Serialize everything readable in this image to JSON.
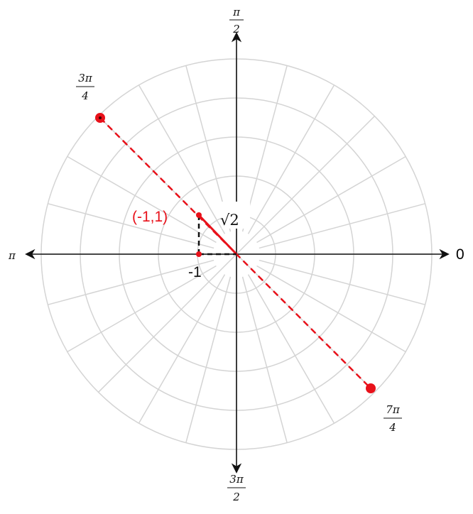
{
  "angle_labels": {
    "top": {
      "numerator": "π",
      "denominator": "2"
    },
    "upper_left": {
      "numerator": "3π",
      "denominator": "4"
    },
    "left": "π",
    "right": "0",
    "bottom": {
      "numerator": "3π",
      "denominator": "2"
    },
    "lower_right": {
      "numerator": "7π",
      "denominator": "4"
    }
  },
  "point_label": "(-1,1)",
  "radius_label": "√2",
  "x_label": "-1"
}
